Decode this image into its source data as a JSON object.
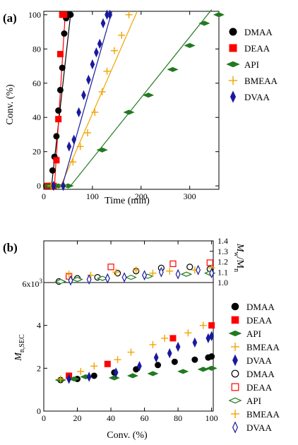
{
  "chart_data": [
    {
      "type": "scatter",
      "panel_label": "(a)",
      "xlabel": "Time (min)",
      "ylabel": "Conv. (%)",
      "xlim": [
        0,
        360
      ],
      "ylim": [
        -2,
        102
      ],
      "xticks": [
        0,
        100,
        200,
        300
      ],
      "yticks": [
        0,
        20,
        40,
        60,
        80,
        100
      ],
      "legend_position": "right",
      "series": [
        {
          "name": "DMAA",
          "marker": "circle",
          "color": "#000000",
          "line_color": "#000000",
          "x": [
            5,
            10,
            15,
            18,
            22,
            26,
            30,
            34,
            38,
            42,
            46,
            50,
            55
          ],
          "y": [
            0,
            0,
            0,
            9,
            17,
            29,
            44,
            56,
            69,
            89,
            98,
            100,
            100
          ],
          "fit": {
            "x": [
              16,
              55
            ],
            "y": [
              0,
              100
            ]
          }
        },
        {
          "name": "DEAA",
          "marker": "square",
          "color": "#ff0000",
          "line_color": "#ff0000",
          "x": [
            8,
            14,
            20,
            26,
            30,
            34,
            38,
            42
          ],
          "y": [
            0,
            0,
            0,
            15,
            39,
            77,
            100,
            100
          ],
          "fit": {
            "x": [
              22,
              44
            ],
            "y": [
              0,
              100
            ]
          }
        },
        {
          "name": "API",
          "marker": "diamond-h",
          "color": "#217a21",
          "line_color": "#217a21",
          "x": [
            10,
            30,
            50,
            120,
            175,
            215,
            265,
            300,
            330,
            360
          ],
          "y": [
            0,
            0,
            0,
            21,
            43,
            53,
            68,
            82,
            95,
            100
          ],
          "fit": {
            "x": [
              55,
              345
            ],
            "y": [
              0,
              103
            ]
          }
        },
        {
          "name": "BMEAA",
          "marker": "plus",
          "color": "#f0a500",
          "line_color": "#f0a500",
          "x": [
            15,
            40,
            60,
            75,
            90,
            105,
            120,
            130,
            145,
            160,
            175
          ],
          "y": [
            0,
            0,
            14,
            23,
            31,
            43,
            55,
            67,
            79,
            88,
            100
          ],
          "fit": {
            "x": [
              35,
              192
            ],
            "y": [
              0,
              102
            ]
          }
        },
        {
          "name": "DVAA",
          "marker": "diamond-v",
          "color": "#1a1a9e",
          "line_color": "#1a1a9e",
          "x": [
            20,
            40,
            52,
            62,
            72,
            82,
            92,
            100,
            108,
            115,
            122,
            130,
            136
          ],
          "y": [
            0,
            0,
            23,
            27,
            43,
            53,
            62,
            71,
            78,
            83,
            95,
            100,
            100
          ],
          "fit": {
            "x": [
              38,
              140
            ],
            "y": [
              0,
              102
            ]
          }
        }
      ]
    },
    {
      "type": "scatter",
      "panel_label": "(b)",
      "xlabel": "Conv. (%)",
      "ylabel_left": "M",
      "ylabel_left_sub": "n,SEC",
      "ylabel_right_m": "M",
      "ylabel_right_w": "w",
      "ylabel_right_slash": "/M",
      "ylabel_right_n": "n",
      "xlim": [
        0,
        101
      ],
      "ylim_mn": [
        0,
        6000
      ],
      "ylim_disp": [
        1.0,
        1.4
      ],
      "xticks": [
        0,
        20,
        40,
        60,
        80,
        100
      ],
      "yticks_mn": [
        0,
        2,
        4
      ],
      "yticks_mn_top_label": "6x10",
      "yticks_mn_top_exp": "3",
      "yticks_disp": [
        1.0,
        1.1,
        1.2,
        1.3,
        1.4
      ],
      "yticks_disp_labels": [
        "1.0",
        "1.1",
        "1.2",
        "1.3",
        "1.4"
      ],
      "legend_position": "right",
      "series_mn": [
        {
          "name": "DMAA",
          "marker": "circle",
          "color": "#000000",
          "x": [
            10,
            20,
            30,
            42,
            55,
            68,
            78,
            90,
            98,
            100
          ],
          "y": [
            1450,
            1500,
            1650,
            1800,
            1950,
            2150,
            2300,
            2400,
            2500,
            2550
          ]
        },
        {
          "name": "DEAA",
          "marker": "square",
          "color": "#ff0000",
          "x": [
            15,
            38,
            77,
            100
          ],
          "y": [
            1650,
            2200,
            3400,
            4000
          ]
        },
        {
          "name": "API",
          "marker": "diamond-h",
          "color": "#217a21",
          "x": [
            10,
            18,
            25,
            42,
            53,
            65,
            83,
            95,
            100
          ],
          "y": [
            1450,
            1500,
            1600,
            1550,
            1650,
            1750,
            1850,
            1950,
            2000
          ]
        },
        {
          "name": "BMEAA",
          "marker": "plus",
          "color": "#f0a500",
          "x": [
            10,
            22,
            30,
            44,
            52,
            65,
            72,
            86,
            95
          ],
          "y": [
            1500,
            1850,
            2100,
            2400,
            2750,
            3100,
            3400,
            3650,
            4000
          ]
        },
        {
          "name": "DVAA",
          "marker": "diamond-v",
          "color": "#1a1a9e",
          "x": [
            15,
            27,
            43,
            57,
            67,
            75,
            80,
            90,
            98,
            100
          ],
          "y": [
            1500,
            1600,
            1800,
            2100,
            2500,
            2700,
            3000,
            3200,
            3400,
            3500
          ]
        }
      ],
      "series_disp": [
        {
          "name": "DMAA",
          "marker": "circle-open",
          "color": "#000000",
          "x": [
            9,
            20,
            32,
            44,
            55,
            70,
            87,
            99
          ],
          "y": [
            1.01,
            1.04,
            1.05,
            1.09,
            1.11,
            1.14,
            1.15,
            1.13
          ]
        },
        {
          "name": "DEAA",
          "marker": "square-open",
          "color": "#ff0000",
          "x": [
            15,
            40,
            77,
            99
          ],
          "y": [
            1.06,
            1.15,
            1.18,
            1.19
          ]
        },
        {
          "name": "API",
          "marker": "diamond-h-open",
          "color": "#217a21",
          "x": [
            10,
            20,
            35,
            52,
            62,
            85,
            99
          ],
          "y": [
            1.01,
            1.03,
            1.04,
            1.05,
            1.06,
            1.08,
            1.09
          ]
        },
        {
          "name": "BMEAA",
          "marker": "plus",
          "color": "#f0a500",
          "x": [
            15,
            28,
            43,
            55,
            65,
            75,
            90,
            100
          ],
          "y": [
            1.08,
            1.07,
            1.1,
            1.12,
            1.09,
            1.11,
            1.12,
            1.14
          ]
        },
        {
          "name": "DVAA",
          "marker": "diamond-v-open",
          "color": "#1a1a9e",
          "x": [
            16,
            27,
            38,
            48,
            60,
            70,
            80,
            92,
            100
          ],
          "y": [
            1.02,
            1.03,
            1.04,
            1.05,
            1.07,
            1.1,
            1.08,
            1.12,
            1.09
          ]
        }
      ]
    }
  ]
}
